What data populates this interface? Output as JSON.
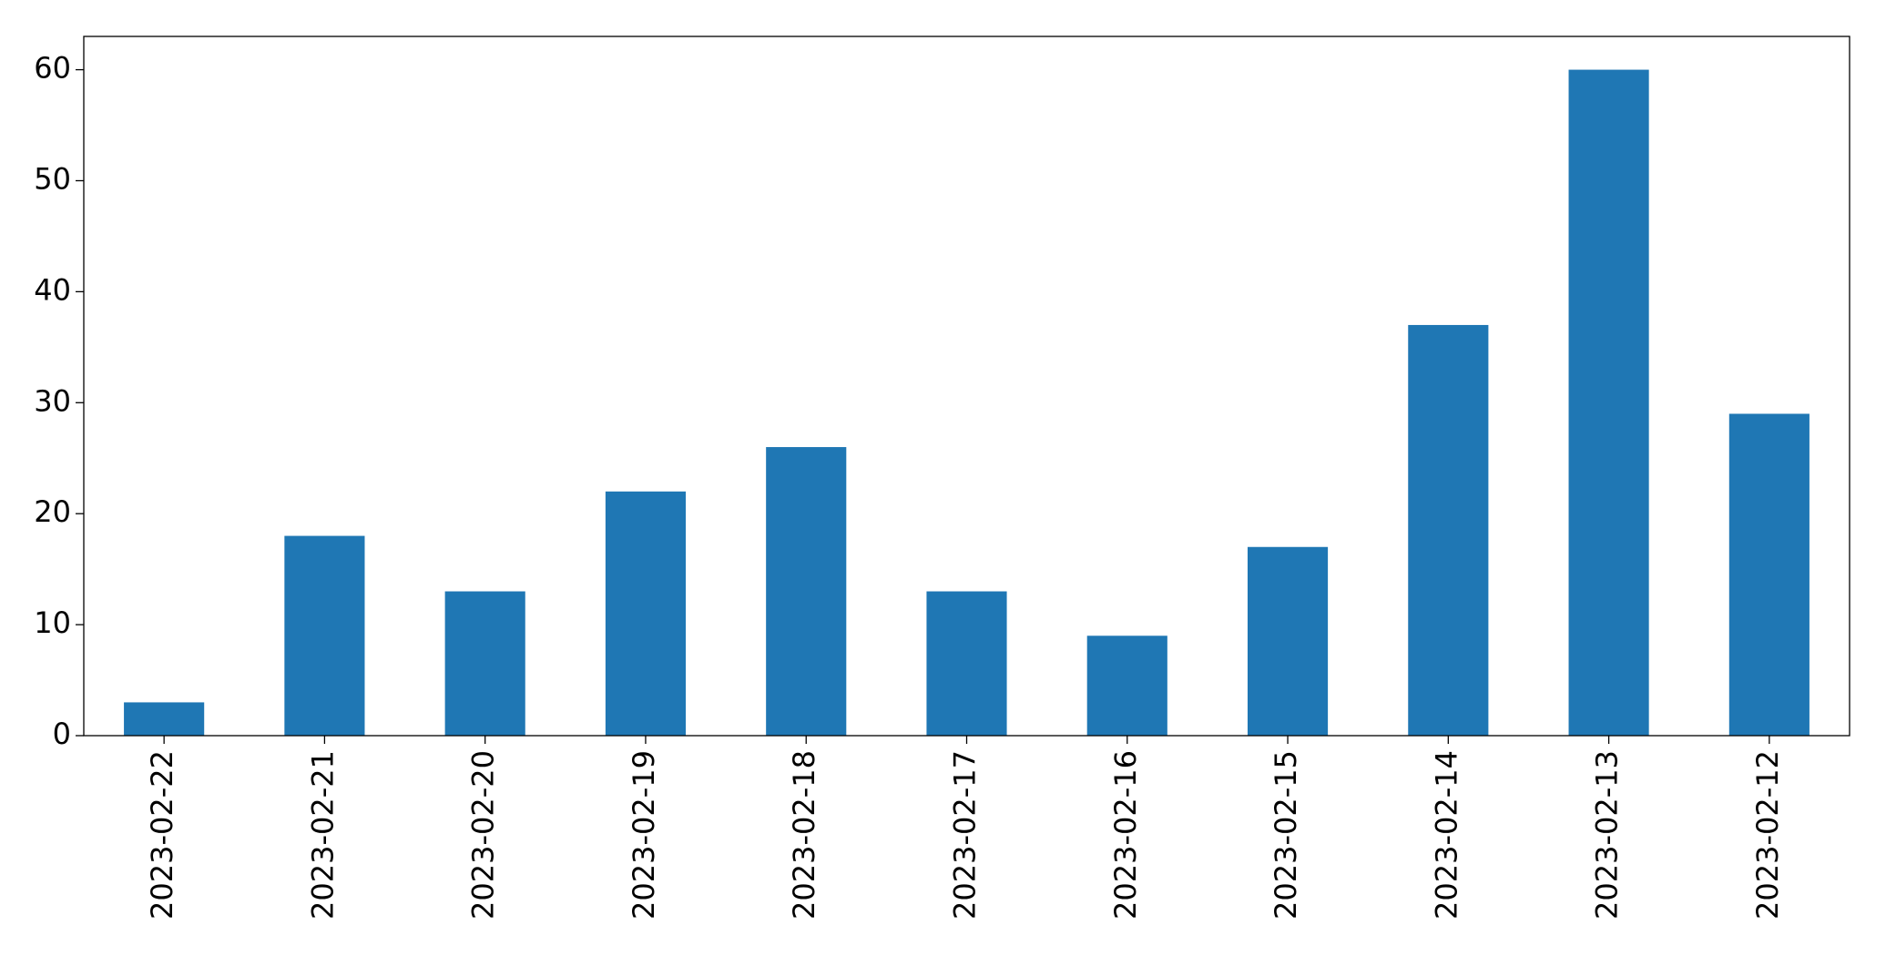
{
  "chart_data": {
    "type": "bar",
    "categories": [
      "2023-02-22",
      "2023-02-21",
      "2023-02-20",
      "2023-02-19",
      "2023-02-18",
      "2023-02-17",
      "2023-02-16",
      "2023-02-15",
      "2023-02-14",
      "2023-02-13",
      "2023-02-12"
    ],
    "values": [
      3,
      18,
      13,
      22,
      26,
      13,
      9,
      17,
      37,
      60,
      29
    ],
    "color": "#1f77b4",
    "ylim": [
      0,
      63
    ],
    "yticks": [
      0,
      10,
      20,
      30,
      40,
      50,
      60
    ],
    "grid": false
  }
}
